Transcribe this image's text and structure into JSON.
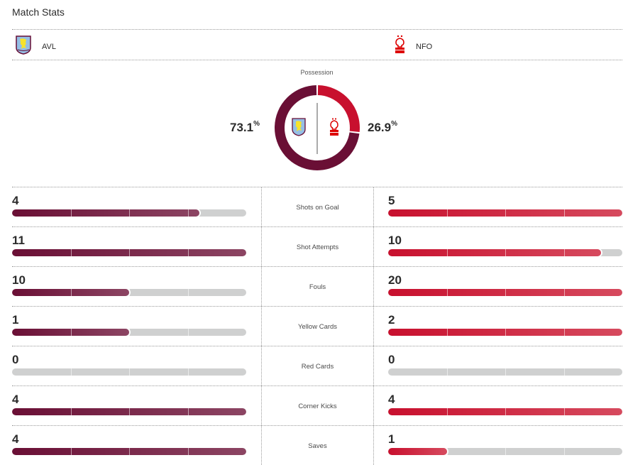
{
  "header": {
    "title": "Match Stats"
  },
  "teams": {
    "home": {
      "abbr": "AVL",
      "crest_icon": "aston-villa-crest-icon",
      "color": "#6a0f35",
      "color_light": "#8c4563"
    },
    "away": {
      "abbr": "NFO",
      "crest_icon": "nottingham-forest-crest-icon",
      "color": "#c8102e",
      "color_light": "#d64a5e"
    }
  },
  "possession": {
    "label": "Possession",
    "home_value": "73.1",
    "away_value": "26.9",
    "unit": "%",
    "home_pct": 73.1,
    "away_pct": 26.9
  },
  "stats": [
    {
      "label": "Shots on Goal",
      "home": "4",
      "away": "5",
      "home_fill": 0.8,
      "away_fill": 1.0
    },
    {
      "label": "Shot Attempts",
      "home": "11",
      "away": "10",
      "home_fill": 1.0,
      "away_fill": 0.909
    },
    {
      "label": "Fouls",
      "home": "10",
      "away": "20",
      "home_fill": 0.5,
      "away_fill": 1.0
    },
    {
      "label": "Yellow Cards",
      "home": "1",
      "away": "2",
      "home_fill": 0.5,
      "away_fill": 1.0
    },
    {
      "label": "Red Cards",
      "home": "0",
      "away": "0",
      "home_fill": 0,
      "away_fill": 0
    },
    {
      "label": "Corner Kicks",
      "home": "4",
      "away": "4",
      "home_fill": 1.0,
      "away_fill": 1.0
    },
    {
      "label": "Saves",
      "home": "4",
      "away": "1",
      "home_fill": 1.0,
      "away_fill": 0.25
    }
  ]
}
